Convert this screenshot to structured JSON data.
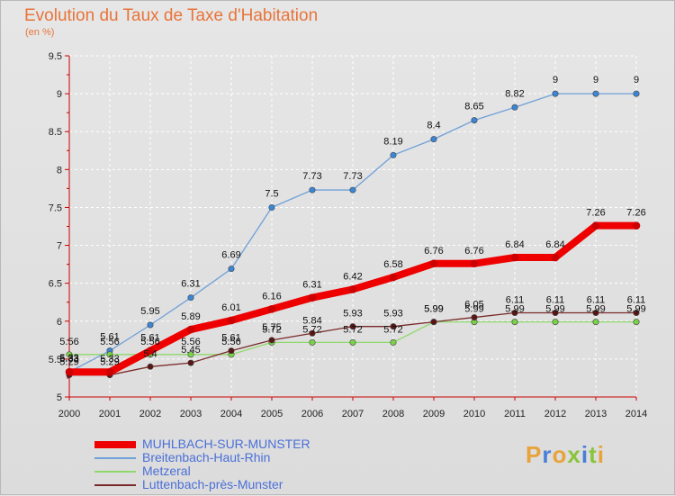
{
  "title": "Evolution du Taux de Taxe d'Habitation",
  "subtitle": "(en %)",
  "logo": {
    "text": "Proxiti",
    "colors": [
      "#e8a33b",
      "#4a7fd8",
      "#e8a33b",
      "#8ac43c",
      "#4a7fd8",
      "#8ac43c",
      "#e8a33b"
    ]
  },
  "chart_data": {
    "type": "line",
    "x": [
      "2000",
      "2001",
      "2002",
      "2003",
      "2004",
      "2005",
      "2006",
      "2007",
      "2008",
      "2009",
      "2010",
      "2011",
      "2012",
      "2013",
      "2014"
    ],
    "ylim": [
      5,
      9.5
    ],
    "yticks": [
      "5",
      "5.5",
      "6",
      "6.5",
      "7",
      "7.5",
      "8",
      "8.5",
      "9",
      "9.5"
    ],
    "grid": true,
    "legend": "bottom-left",
    "series": [
      {
        "name": "MUHLBACH-SUR-MUNSTER",
        "color": "#ee0000",
        "values": [
          5.33,
          5.33,
          5.61,
          5.89,
          6.01,
          6.16,
          6.31,
          6.42,
          6.58,
          6.76,
          6.76,
          6.84,
          6.84,
          7.26,
          7.26
        ],
        "labels": [
          "5.33",
          "5.33",
          "5.61",
          "5.89",
          "6.01",
          "6.16",
          "6.31",
          "6.42",
          "6.58",
          "6.76",
          "6.76",
          "6.84",
          "6.84",
          "7.26",
          "7.26"
        ]
      },
      {
        "name": "Breitenbach-Haut-Rhin",
        "color": "#6fa0d8",
        "values": [
          5.33,
          5.61,
          5.95,
          6.31,
          6.69,
          7.5,
          7.73,
          7.73,
          8.19,
          8.4,
          8.65,
          8.82,
          9,
          9,
          9
        ],
        "labels": [
          "5.33",
          "5.61",
          "5.95",
          "6.31",
          "6.69",
          "7.5",
          "7.73",
          "7.73",
          "8.19",
          "8.4",
          "8.65",
          "8.82",
          "9",
          "9",
          "9"
        ]
      },
      {
        "name": "Metzeral",
        "color": "#8fd96a",
        "values": [
          5.56,
          5.56,
          5.56,
          5.56,
          5.56,
          5.72,
          5.72,
          5.72,
          5.72,
          5.99,
          5.99,
          5.99,
          5.99,
          5.99,
          5.99
        ],
        "labels": [
          "5.56",
          "5.56",
          "5.56",
          "5.56",
          "5.56",
          "5.72",
          "5.72",
          "5.72",
          "5.72",
          "5.99",
          "5.99",
          "5.99",
          "5.99",
          "5.99",
          "5.99"
        ]
      },
      {
        "name": "Luttenbach-près-Munster",
        "color": "#7a2a2a",
        "values": [
          5.29,
          5.29,
          5.4,
          5.45,
          5.61,
          5.75,
          5.84,
          5.93,
          5.93,
          5.99,
          6.05,
          6.11,
          6.11,
          6.11,
          6.11
        ],
        "labels": [
          "5.29",
          "5.29",
          "5.4",
          "5.45",
          "5.61",
          "5.75",
          "5.84",
          "5.93",
          "5.93",
          "5.99",
          "6.05",
          "6.11",
          "6.11",
          "6.11",
          "6.11"
        ]
      }
    ]
  }
}
